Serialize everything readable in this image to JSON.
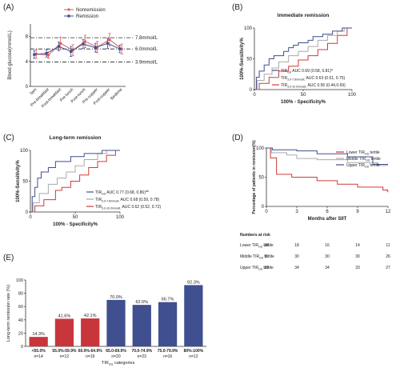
{
  "chart_data": [
    {
      "panel": "(A)",
      "type": "line",
      "ylabel": "Blood glucose(mmol/L)",
      "ylim": [
        0,
        10
      ],
      "yticks": [
        "0",
        "4",
        "8"
      ],
      "categories": [
        "3am",
        "Pre-breakfast",
        "Post-breakfast",
        "Pre-lunch",
        "Post-lunch",
        "Pre-supper",
        "Post-supper",
        "Bedtime"
      ],
      "legend": "top-right",
      "series": [
        {
          "name": "Nonremission",
          "color": "#e05a5a",
          "values": [
            5.2,
            5.0,
            6.9,
            5.8,
            7.2,
            6.3,
            7.5,
            6.0
          ],
          "err": [
            0.7,
            0.5,
            1.0,
            0.9,
            1.0,
            0.9,
            1.0,
            0.8
          ]
        },
        {
          "name": "Remission",
          "color": "#3f4f8f",
          "values": [
            5.1,
            5.3,
            6.4,
            5.6,
            6.8,
            6.2,
            6.9,
            6.0
          ],
          "err": [
            0.6,
            0.6,
            0.7,
            0.8,
            0.7,
            0.7,
            0.8,
            0.6
          ]
        }
      ],
      "reference_lines": [
        {
          "label": "7.8mmol/L",
          "y": 7.8
        },
        {
          "label": "6.0mmol/L",
          "y": 6.0
        },
        {
          "label": "3.9mmol/L",
          "y": 3.9
        }
      ]
    },
    {
      "panel": "(B)",
      "type": "line",
      "title": "Immediate remission",
      "xlabel": "100% - Specificity%",
      "ylabel": "100%-Sensitivity%",
      "xlim": [
        0,
        100
      ],
      "ylim": [
        0,
        100
      ],
      "xticks": [
        "0",
        "50",
        "100"
      ],
      "yticks": [
        "0",
        "50",
        "100"
      ],
      "legend": "bottom-right",
      "series": [
        {
          "name": "TIR",
          "sub": "GS",
          "rest": " AUC 0.69 (0.58, 0.81)",
          "sup": "a",
          "color": "#3f4f8f",
          "x": [
            0,
            2,
            2,
            5,
            5,
            10,
            10,
            15,
            15,
            20,
            20,
            30,
            30,
            35,
            35,
            40,
            40,
            45,
            45,
            55,
            55,
            60,
            60,
            70,
            70,
            80,
            80,
            90,
            90,
            100
          ],
          "y": [
            0,
            0,
            20,
            20,
            30,
            30,
            40,
            40,
            50,
            50,
            55,
            55,
            62,
            62,
            68,
            68,
            72,
            72,
            76,
            76,
            80,
            80,
            86,
            86,
            90,
            90,
            95,
            95,
            100,
            100
          ]
        },
        {
          "name": "TIR",
          "sub": "3.9-7.8mmol/L",
          "rest": " AUC 0.63 (0.51, 0.75)",
          "sup": "",
          "color": "#aaaaaa",
          "x": [
            0,
            3,
            3,
            10,
            10,
            18,
            18,
            25,
            25,
            35,
            35,
            45,
            45,
            55,
            55,
            65,
            65,
            75,
            75,
            85,
            85,
            92,
            92,
            100
          ],
          "y": [
            0,
            0,
            15,
            15,
            25,
            25,
            35,
            35,
            45,
            45,
            55,
            55,
            62,
            62,
            70,
            70,
            80,
            80,
            88,
            88,
            95,
            95,
            100,
            100
          ]
        },
        {
          "name": "TIR",
          "sub": "3.9-10.0mmol/L",
          "rest": " AUC 0.56 (0.44,0.69)",
          "sup": "",
          "color": "#d03a3a",
          "x": [
            0,
            5,
            5,
            15,
            15,
            25,
            25,
            35,
            35,
            45,
            45,
            55,
            55,
            65,
            65,
            75,
            75,
            85,
            85,
            95,
            95,
            100
          ],
          "y": [
            0,
            0,
            10,
            10,
            20,
            20,
            30,
            30,
            38,
            38,
            48,
            48,
            55,
            55,
            65,
            65,
            75,
            75,
            88,
            88,
            100,
            100
          ]
        }
      ]
    },
    {
      "panel": "(C)",
      "type": "line",
      "title": "Long-term remission",
      "xlabel": "100% - Specificity%",
      "ylabel": "100%-Sensitivity%",
      "xlim": [
        0,
        100
      ],
      "ylim": [
        0,
        100
      ],
      "xticks": [
        "0",
        "50",
        "100"
      ],
      "yticks": [
        "0",
        "50",
        "100"
      ],
      "legend": "bottom-right",
      "series": [
        {
          "name": "TIR",
          "sub": "GS",
          "rest": " AUC 0.77 (0.68, 0.86)",
          "sup": "ab",
          "color": "#3f4f8f",
          "x": [
            0,
            2,
            2,
            5,
            5,
            8,
            8,
            12,
            12,
            20,
            20,
            28,
            28,
            45,
            45,
            60,
            60,
            80,
            80,
            100
          ],
          "y": [
            0,
            0,
            25,
            25,
            40,
            40,
            55,
            55,
            65,
            65,
            72,
            72,
            82,
            82,
            90,
            90,
            95,
            95,
            100,
            100
          ]
        },
        {
          "name": "TIR",
          "sub": "3.9-7.8mmol/L",
          "rest": " AUC 0.68 (0.59, 0.78)",
          "sup": "",
          "color": "#aaaaaa",
          "x": [
            0,
            3,
            3,
            10,
            10,
            20,
            20,
            30,
            30,
            40,
            40,
            50,
            50,
            60,
            60,
            75,
            75,
            85,
            85,
            100
          ],
          "y": [
            0,
            0,
            15,
            15,
            30,
            30,
            45,
            45,
            55,
            55,
            65,
            65,
            75,
            75,
            85,
            85,
            95,
            95,
            100,
            100
          ]
        },
        {
          "name": "TIR",
          "sub": "3.9-10.0mmol/L",
          "rest": " AUC 0.62 (0.52, 0.72)",
          "sup": "",
          "color": "#d03a3a",
          "x": [
            0,
            5,
            5,
            15,
            15,
            28,
            28,
            35,
            35,
            45,
            45,
            55,
            55,
            65,
            65,
            75,
            75,
            85,
            85,
            95,
            95,
            100
          ],
          "y": [
            0,
            0,
            10,
            10,
            20,
            20,
            35,
            35,
            40,
            40,
            50,
            50,
            60,
            60,
            72,
            72,
            82,
            82,
            92,
            92,
            100,
            100
          ]
        }
      ]
    },
    {
      "panel": "(D)",
      "type": "line",
      "xlabel": "Months after SIIT",
      "ylabel": "Percentage of patients in remission(%)",
      "xlim": [
        0,
        12
      ],
      "ylim": [
        0,
        100
      ],
      "xticks": [
        "0",
        "3",
        "6",
        "9",
        "12"
      ],
      "yticks": [
        "0",
        "50",
        "100"
      ],
      "legend": "top-right",
      "series": [
        {
          "name": "Lower TIR",
          "sub": "GS",
          "tail": " tertile",
          "color": "#d03a3a",
          "x": [
            0,
            0.4,
            0.4,
            1,
            1,
            2.5,
            2.5,
            5,
            5,
            7,
            7,
            9,
            9,
            11.5,
            11.5,
            12
          ],
          "y": [
            100,
            100,
            83,
            83,
            55,
            55,
            50,
            50,
            44,
            44,
            38,
            38,
            33,
            33,
            28,
            28
          ],
          "markers": [
            {
              "x": 12,
              "y": 24,
              "text": "*"
            }
          ]
        },
        {
          "name": "Middle TIR",
          "sub": "GS",
          "tail": " tertile",
          "color": "#aaaaaa",
          "x": [
            0,
            0.5,
            0.5,
            2,
            2,
            3,
            3,
            5,
            5,
            8,
            8,
            11,
            11,
            12
          ],
          "y": [
            100,
            100,
            92,
            92,
            88,
            88,
            82,
            82,
            80,
            80,
            75,
            75,
            70,
            70
          ]
        },
        {
          "name": "Upper TIR",
          "sub": "GS",
          "tail": " tertile",
          "color": "#3f4f8f",
          "x": [
            0,
            0.6,
            0.6,
            3,
            3,
            5,
            5,
            8,
            8,
            10.5,
            10.5,
            12
          ],
          "y": [
            100,
            100,
            97,
            97,
            95,
            95,
            90,
            90,
            85,
            85,
            72,
            72
          ]
        }
      ],
      "risk_table": {
        "header": "Numbers at risk",
        "rows": [
          {
            "name": "Lower TIR",
            "sub": "GS",
            "tail": " tertile",
            "values": [
              "38",
              "18",
              "16",
              "14",
              "11"
            ]
          },
          {
            "name": "Middle TIR",
            "sub": "GS",
            "tail": " tertile",
            "values": [
              "39",
              "30",
              "30",
              "30",
              "26"
            ]
          },
          {
            "name": "Upper TIR",
            "sub": "GS",
            "tail": " tertile",
            "values": [
              "39",
              "34",
              "34",
              "33",
              "27"
            ]
          }
        ]
      }
    },
    {
      "panel": "(E)",
      "type": "bar",
      "ylabel": "Long-term remission rate (%)",
      "xlabel": "TIR",
      "xlabel_sub": "GS",
      "xlabel_tail": " categories",
      "ylim": [
        0,
        100
      ],
      "yticks": [
        "0",
        "20",
        "40",
        "60",
        "80",
        "100"
      ],
      "categories": [
        "<55.0%",
        "55.0%-59.9%",
        "60.0%-64.9%",
        "65.0-69.9%",
        "70.0-74.9%",
        "75.0-79.9%",
        "80%-100%"
      ],
      "n_labels": [
        "n=14",
        "n=12",
        "n=19",
        "n=20",
        "n=23",
        "n=16",
        "n=12"
      ],
      "values": [
        14.3,
        41.6,
        42.1,
        70.0,
        62.5,
        66.7,
        92.3
      ],
      "value_labels": [
        "14.3%",
        "41.6%",
        "42.1%",
        "70.0%",
        "62.5%",
        "66.7%",
        "92.3%"
      ],
      "colors": [
        "#c8363c",
        "#c8363c",
        "#c8363c",
        "#3f4f8f",
        "#3f4f8f",
        "#3f4f8f",
        "#3f4f8f"
      ]
    }
  ]
}
